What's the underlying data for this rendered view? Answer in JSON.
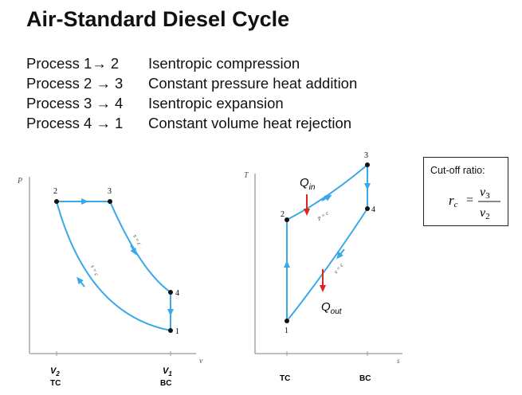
{
  "title": "Air-Standard Diesel Cycle",
  "processes": [
    {
      "label": "Process 1→ 2",
      "description": "Isentropic compression"
    },
    {
      "label": "Process 2 → 3",
      "description": "Constant pressure heat addition"
    },
    {
      "label": "Process 3 → 4",
      "description": "Isentropic expansion"
    },
    {
      "label": "Process 4 → 1",
      "description": "Constant volume heat rejection"
    }
  ],
  "cutoff": {
    "title": "Cut-off ratio:",
    "symbol": "r",
    "subscript": "c",
    "equals": "=",
    "numerator": "v",
    "numerator_sub": "3",
    "denominator": "v",
    "denominator_sub": "2"
  },
  "pv_diagram": {
    "y_axis": "P",
    "x_axis": "v",
    "states": [
      "1",
      "2",
      "3",
      "4"
    ],
    "process_labels": [
      "s = c",
      "s = c"
    ],
    "v2_symbol": "V",
    "v2_sub": "2",
    "v1_symbol": "V",
    "v1_sub": "1",
    "tc": "TC",
    "bc": "BC"
  },
  "ts_diagram": {
    "y_axis": "T",
    "x_axis": "s",
    "states": [
      "1",
      "2",
      "3",
      "4"
    ],
    "process_labels": [
      "p = c",
      "v = c"
    ],
    "qin_symbol": "Q",
    "qin_sub": "in",
    "qout_symbol": "Q",
    "qout_sub": "out",
    "tc": "TC",
    "bc": "BC"
  },
  "colors": {
    "curve": "#3aa8e8",
    "heat_arrow": "#e0241b",
    "axis": "#9a9a9a",
    "point": "#111111"
  }
}
